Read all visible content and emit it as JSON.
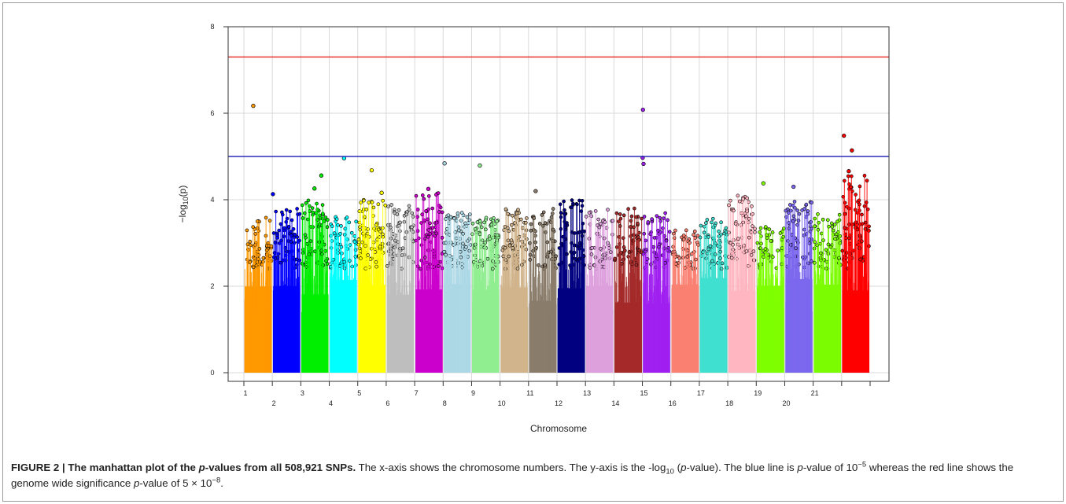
{
  "chart_data": {
    "type": "scatter",
    "xlabel": "Chromosome",
    "ylabel_base": "−log",
    "ylabel_sub": "10",
    "ylabel_arg": "(p)",
    "ylim": [
      0,
      8
    ],
    "yticks": [
      0,
      2,
      4,
      6,
      8
    ],
    "grid": true,
    "chromosomes": [
      {
        "label": "1",
        "start": 0.0,
        "end": 1.0,
        "color": "#FF9900"
      },
      {
        "label": "2",
        "start": 1.0,
        "end": 2.0,
        "color": "#0000FF"
      },
      {
        "label": "3",
        "start": 2.0,
        "end": 3.0,
        "color": "#00EE00"
      },
      {
        "label": "4",
        "start": 3.0,
        "end": 4.0,
        "color": "#00FFFF"
      },
      {
        "label": "5",
        "start": 4.0,
        "end": 5.0,
        "color": "#FFFF00"
      },
      {
        "label": "6",
        "start": 5.0,
        "end": 6.0,
        "color": "#BEBEBE"
      },
      {
        "label": "7",
        "start": 6.0,
        "end": 7.0,
        "color": "#CC00CC"
      },
      {
        "label": "8",
        "start": 7.0,
        "end": 8.0,
        "color": "#ADD8E6"
      },
      {
        "label": "9",
        "start": 8.0,
        "end": 9.0,
        "color": "#90EE90"
      },
      {
        "label": "10",
        "start": 9.0,
        "end": 10.0,
        "color": "#D2B48C"
      },
      {
        "label": "11",
        "start": 10.0,
        "end": 11.0,
        "color": "#8B7D6B"
      },
      {
        "label": "12",
        "start": 11.0,
        "end": 12.0,
        "color": "#000080"
      },
      {
        "label": "13",
        "start": 12.0,
        "end": 13.0,
        "color": "#DDA0DD"
      },
      {
        "label": "14",
        "start": 13.0,
        "end": 14.0,
        "color": "#A52A2A"
      },
      {
        "label": "15",
        "start": 14.0,
        "end": 15.0,
        "color": "#A020F0"
      },
      {
        "label": "16",
        "start": 15.0,
        "end": 16.0,
        "color": "#FA8072"
      },
      {
        "label": "17",
        "start": 16.0,
        "end": 17.0,
        "color": "#40E0D0"
      },
      {
        "label": "18",
        "start": 17.0,
        "end": 18.0,
        "color": "#FFB6C1"
      },
      {
        "label": "19",
        "start": 18.0,
        "end": 19.0,
        "color": "#7FFF00"
      },
      {
        "label": "20",
        "start": 19.0,
        "end": 20.0,
        "color": "#7B68EE"
      },
      {
        "label": "21",
        "start": 20.0,
        "end": 21.0,
        "color": "#7CFC00"
      },
      {
        "label": "",
        "start": 21.0,
        "end": 22.0,
        "color": "#FF0000"
      }
    ],
    "thresholds": [
      {
        "value": 7.3,
        "color": "#E8352B"
      },
      {
        "value": 5.0,
        "color": "#2B2BB8"
      }
    ],
    "top_points": [
      {
        "x": 0.33,
        "y": 6.17
      },
      {
        "x": 14.02,
        "y": 6.08
      },
      {
        "x": 21.08,
        "y": 5.48
      },
      {
        "x": 21.36,
        "y": 5.14
      },
      {
        "x": 14.01,
        "y": 4.97
      },
      {
        "x": 14.04,
        "y": 4.83
      },
      {
        "x": 3.52,
        "y": 4.96
      },
      {
        "x": 8.29,
        "y": 4.79
      },
      {
        "x": 7.05,
        "y": 4.84
      },
      {
        "x": 4.49,
        "y": 4.68
      },
      {
        "x": 2.72,
        "y": 4.56
      },
      {
        "x": 21.25,
        "y": 4.66
      },
      {
        "x": 18.25,
        "y": 4.38
      },
      {
        "x": 19.31,
        "y": 4.3
      },
      {
        "x": 1.02,
        "y": 4.13
      },
      {
        "x": 6.48,
        "y": 4.25
      },
      {
        "x": 10.25,
        "y": 4.2
      },
      {
        "x": 2.48,
        "y": 4.26
      },
      {
        "x": 4.84,
        "y": 4.16
      }
    ],
    "bulk_top": [
      3.6,
      3.8,
      4.0,
      3.7,
      4.0,
      3.9,
      4.2,
      3.7,
      3.6,
      3.8,
      3.8,
      4.0,
      3.8,
      3.8,
      3.7,
      3.3,
      3.6,
      4.1,
      3.4,
      4.0,
      3.7,
      4.6
    ]
  },
  "caption": {
    "lead": "FIGURE 2 | The manhattan plot of the ",
    "lead_italic": "p",
    "lead_end": "-values from all 508,921 SNPs.",
    "s1": " The x-axis shows the chromosome numbers. The y-axis is the -log",
    "s1_sub": "10",
    "s2": " (",
    "s2_italic": "p",
    "s3": "-value). The blue line is ",
    "s3_italic": "p",
    "s4": "-value of 10",
    "s4_sup": "−5",
    "s5": " whereas the red line shows the genome wide significance ",
    "s5_italic": "p",
    "s6": "-value of 5 × 10",
    "s6_sup": "−8",
    "s7": "."
  }
}
